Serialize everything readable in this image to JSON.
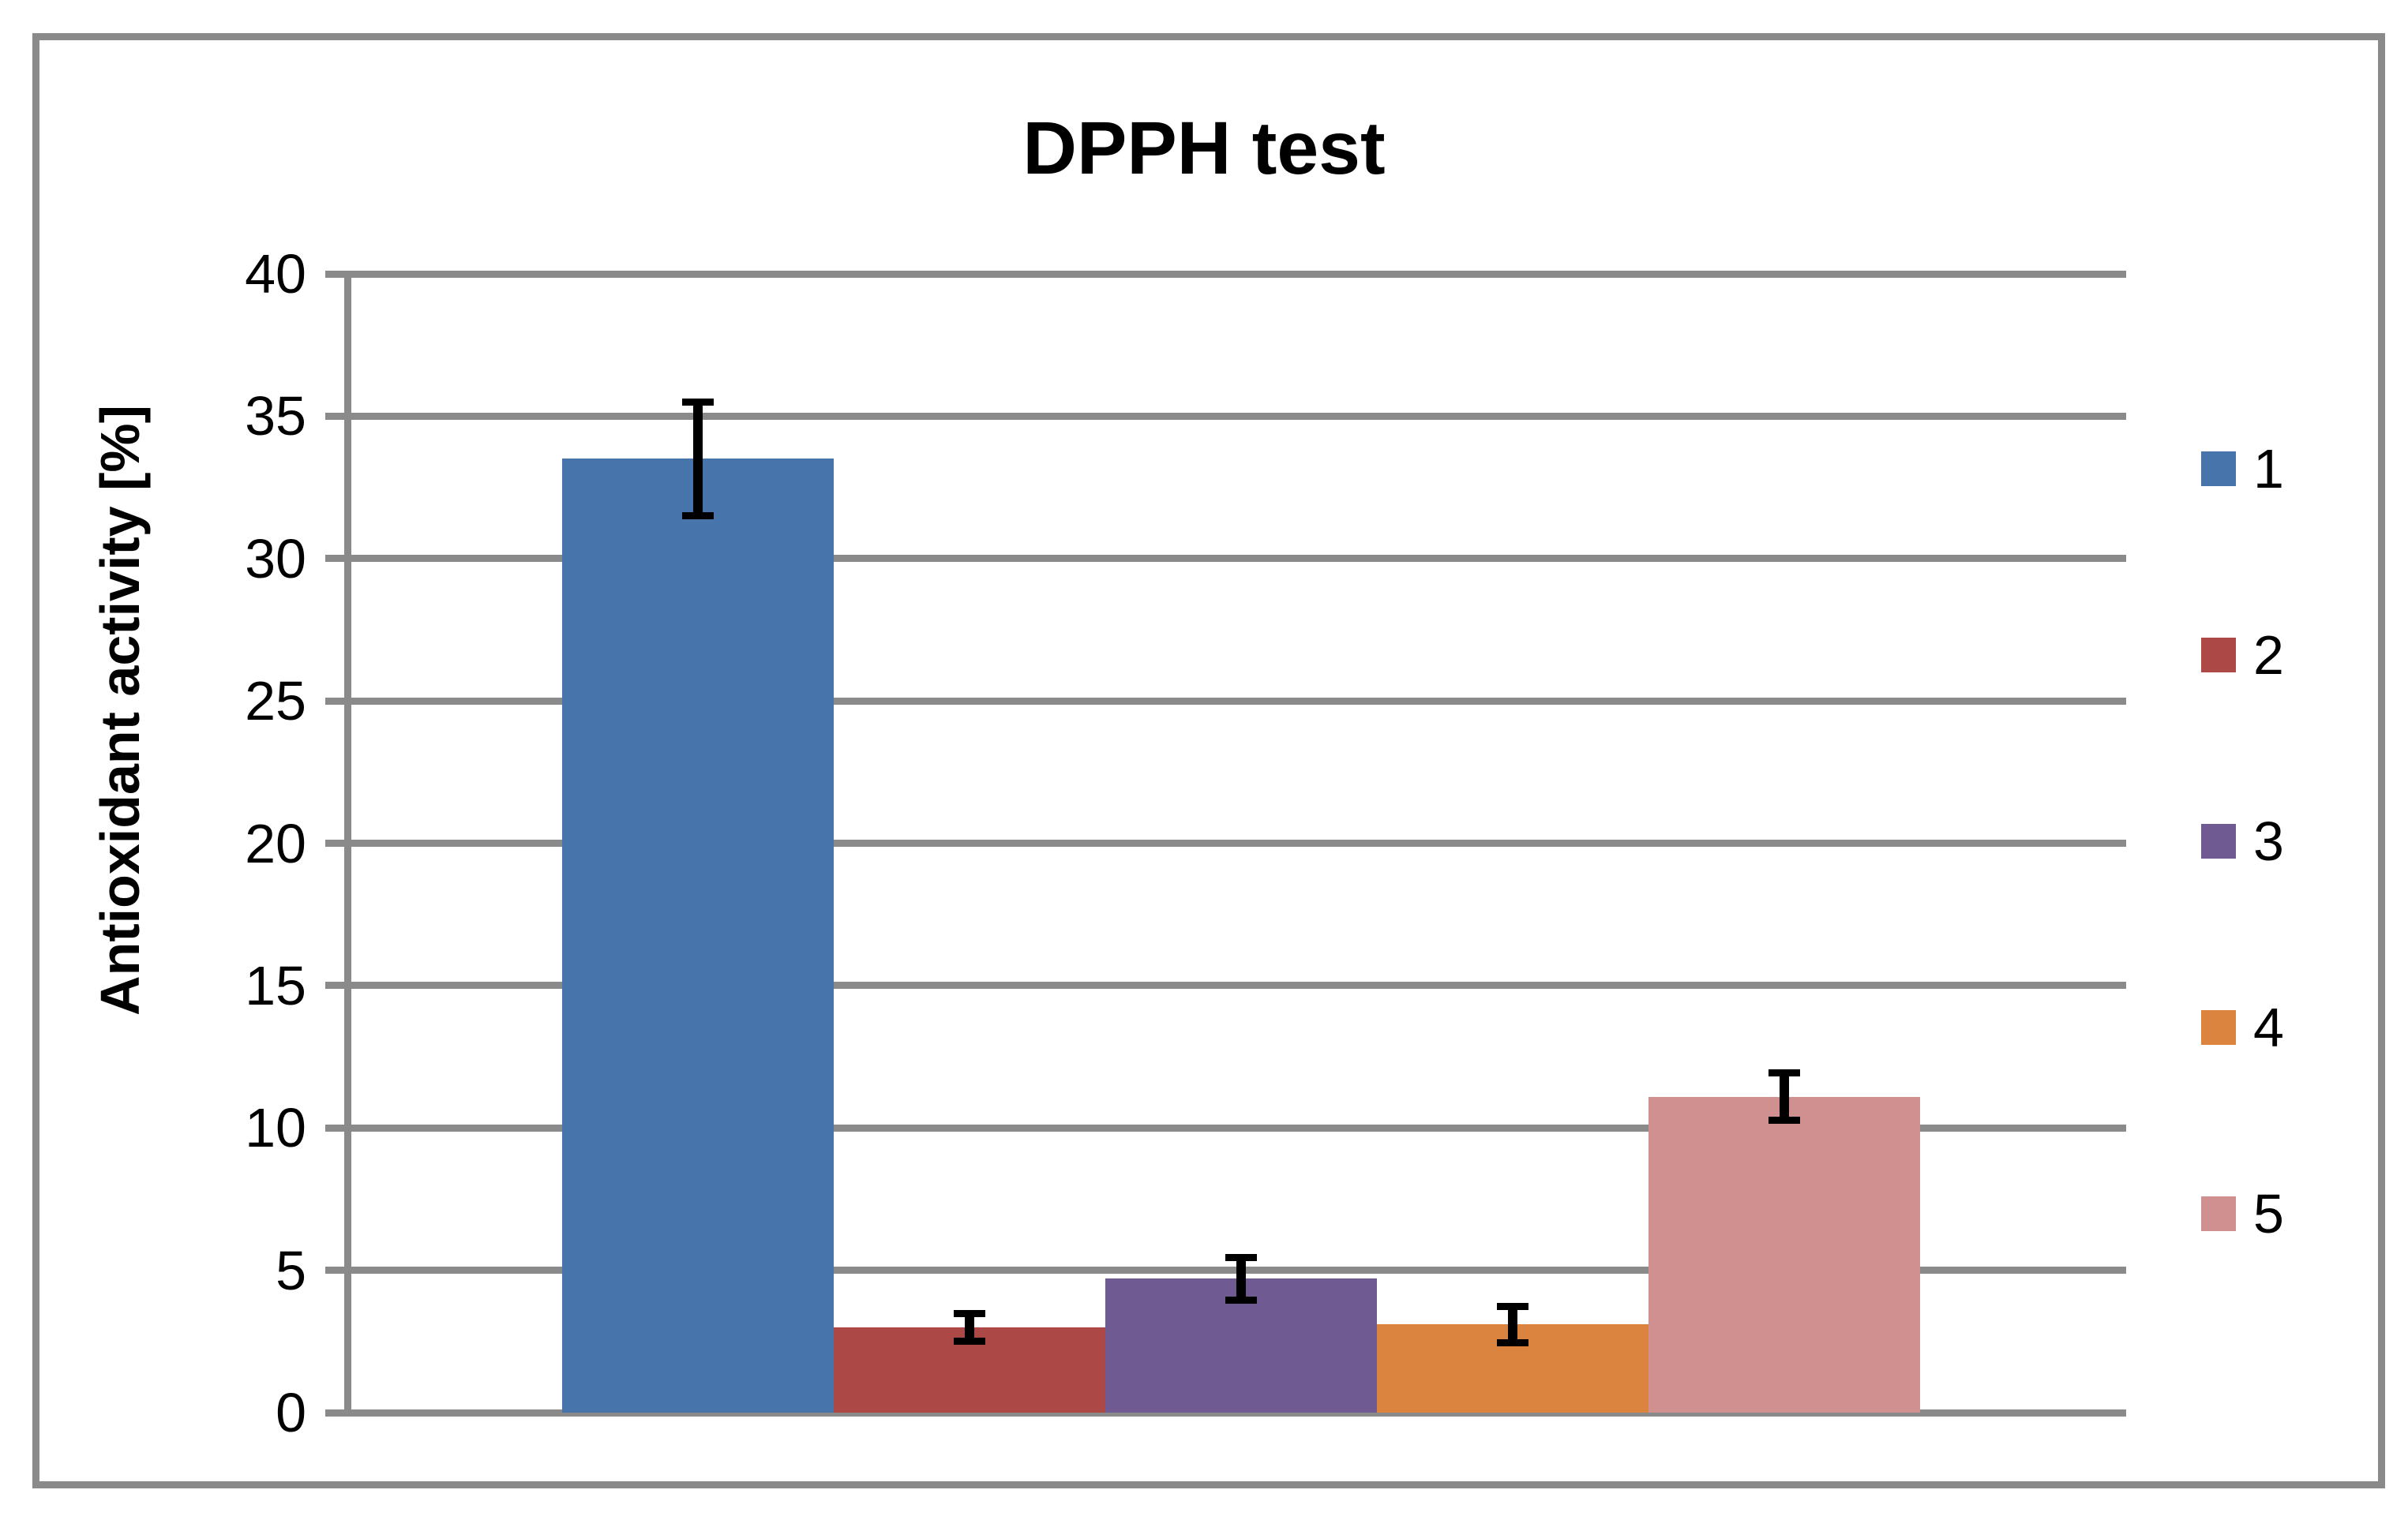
{
  "chart_data": {
    "type": "bar",
    "title": "DPPH test",
    "xlabel": "",
    "ylabel": "Antioxidant activity [%]",
    "ylim": [
      0,
      40
    ],
    "yticks": [
      0,
      5,
      10,
      15,
      20,
      25,
      30,
      35,
      40
    ],
    "grid": true,
    "legend_position": "right",
    "categories": [
      ""
    ],
    "series": [
      {
        "name": "1",
        "value": 33.5,
        "error": 2.0,
        "color": "#4674AB"
      },
      {
        "name": "2",
        "value": 3.0,
        "error": 0.5,
        "color": "#AC4846"
      },
      {
        "name": "3",
        "value": 4.7,
        "error": 0.75,
        "color": "#6F5B92"
      },
      {
        "name": "4",
        "value": 3.1,
        "error": 0.65,
        "color": "#DB8440"
      },
      {
        "name": "5",
        "value": 11.1,
        "error": 0.85,
        "color": "#D0908F"
      }
    ],
    "error_bar_color": "#000000",
    "axis_color": "#8A8A8A",
    "text_color": "#000000",
    "background": "#FFFFFF"
  }
}
